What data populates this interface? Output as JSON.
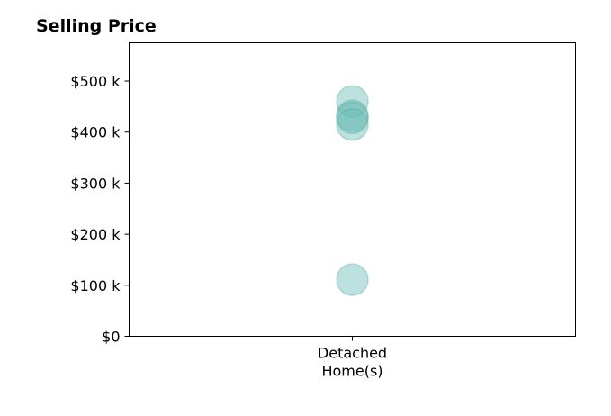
{
  "chart_data": {
    "type": "scatter",
    "title": "Selling Price",
    "xlabel": "",
    "ylabel": "",
    "categories": [
      "Detached Home(s)"
    ],
    "category_label_lines": [
      [
        "Detached",
        "Home(s)"
      ]
    ],
    "ylim": [
      0,
      575000
    ],
    "yticks": [
      0,
      100000,
      200000,
      300000,
      400000,
      500000
    ],
    "ytick_labels": [
      "$0",
      "$100 k",
      "$200 k",
      "$300 k",
      "$400 k",
      "$500 k"
    ],
    "series": [
      {
        "points": [
          {
            "category": "Detached Home(s)",
            "y": 460000
          },
          {
            "category": "Detached Home(s)",
            "y": 432000
          },
          {
            "category": "Detached Home(s)",
            "y": 428000
          },
          {
            "category": "Detached Home(s)",
            "y": 415000
          },
          {
            "category": "Detached Home(s)",
            "y": 111000
          }
        ]
      }
    ],
    "marker_color": "#6cbdb5",
    "marker_stroke": "#4fa59c",
    "grid": false,
    "legend": "none"
  }
}
